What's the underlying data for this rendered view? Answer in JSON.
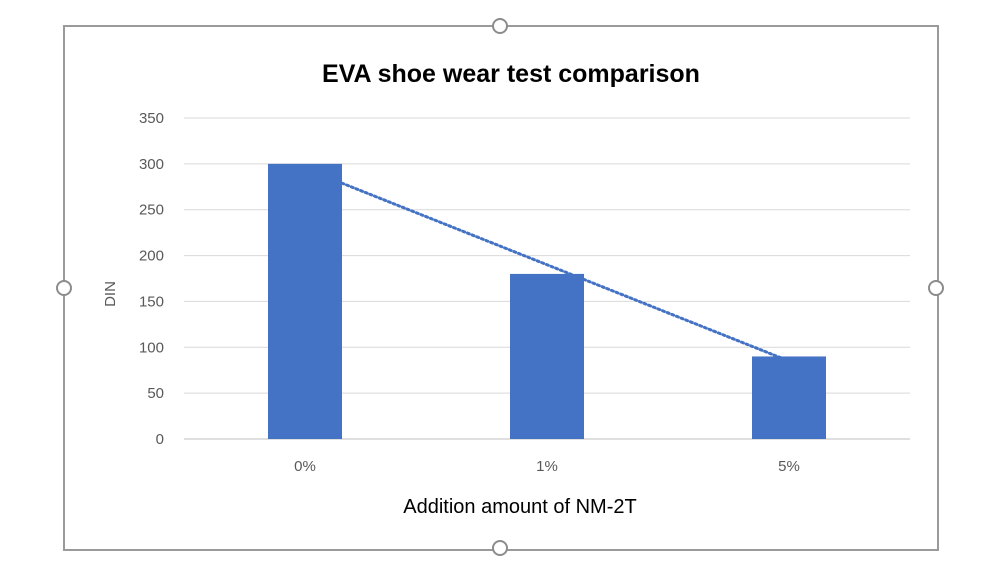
{
  "chart_data": {
    "type": "bar",
    "title": "EVA shoe wear test comparison",
    "xlabel": "Addition amount of NM-2T",
    "ylabel": "DIN",
    "categories": [
      "0%",
      "1%",
      "5%"
    ],
    "values": [
      300,
      180,
      90
    ],
    "ylim": [
      0,
      350
    ],
    "yticks": [
      "0",
      "50",
      "100",
      "150",
      "200",
      "250",
      "300",
      "350"
    ],
    "grid": true,
    "legend": "none",
    "trendline": "linear dotted",
    "colors": {
      "bar": "#4472c4",
      "trendline": "#4472c4",
      "grid": "#d9d9d9",
      "frame": "#9a9a9a"
    }
  }
}
